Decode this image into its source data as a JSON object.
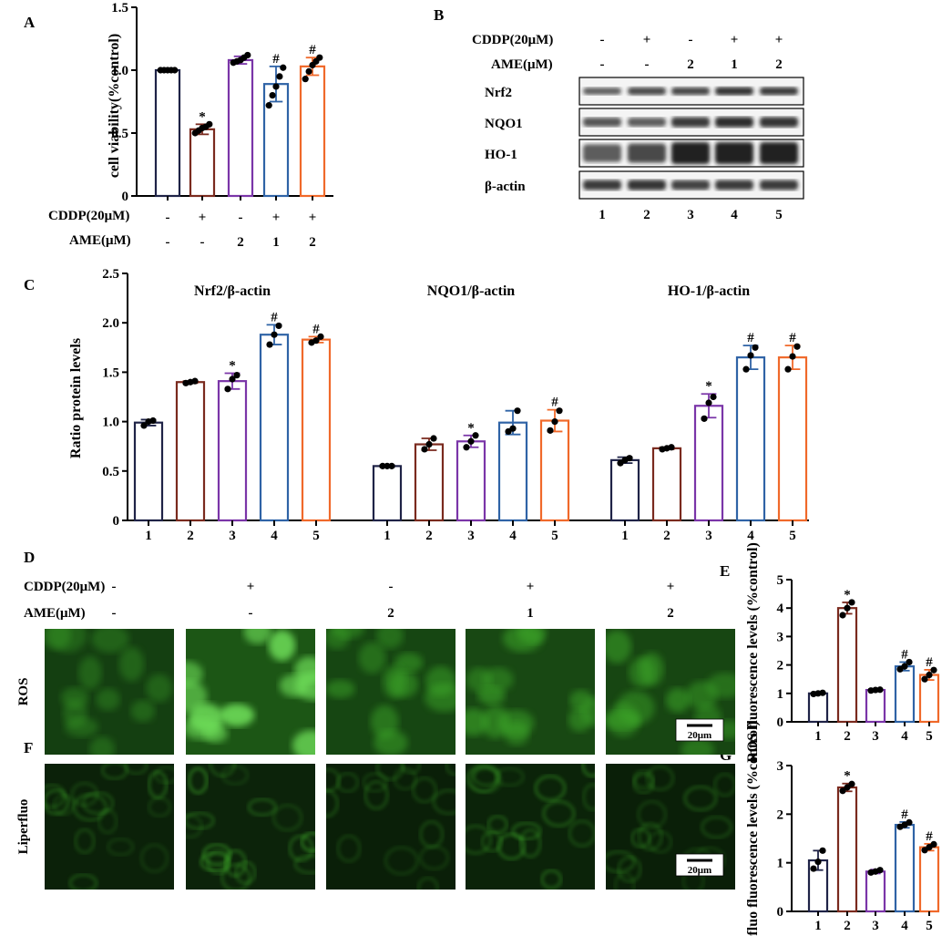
{
  "panels": {
    "A": "A",
    "B": "B",
    "C": "C",
    "D": "D",
    "E": "E",
    "F": "F",
    "G": "G"
  },
  "colors": {
    "g1": "#1f2347",
    "g2": "#7a2a1e",
    "g3": "#7a35a8",
    "g4": "#2f63a6",
    "g5": "#f0692a",
    "fluor": "#3fae2a"
  },
  "conditions": {
    "cddp_label": "CDDP(20μM)",
    "ame_label": "AME(μM)",
    "cddp": [
      "-",
      "+",
      "-",
      "+",
      "+"
    ],
    "ame": [
      "-",
      "-",
      "2",
      "1",
      "2"
    ]
  },
  "blot": {
    "rows": [
      "Nrf2",
      "NQO1",
      "HO-1",
      "β-actin"
    ],
    "lanes": [
      "1",
      "2",
      "3",
      "4",
      "5"
    ]
  },
  "images": {
    "row_labels": [
      "ROS",
      "Liperfluo"
    ],
    "scale_bar": "20μm"
  },
  "chart_data": [
    {
      "id": "A",
      "type": "bar",
      "ylabel": "cell viability(%control)",
      "ylim": [
        0,
        1.5
      ],
      "yticks": [
        "0",
        "0.5",
        "1.0",
        "1.5"
      ],
      "values": [
        1.0,
        0.53,
        1.08,
        0.89,
        1.03
      ],
      "errors": [
        0.0,
        0.04,
        0.03,
        0.14,
        0.07
      ],
      "points": [
        [
          1.0,
          1.0,
          1.0,
          1.0,
          1.0
        ],
        [
          0.5,
          0.52,
          0.54,
          0.55,
          0.57
        ],
        [
          1.06,
          1.07,
          1.08,
          1.1,
          1.12
        ],
        [
          0.72,
          0.8,
          0.87,
          0.95,
          1.02
        ],
        [
          0.93,
          0.99,
          1.04,
          1.07,
          1.1
        ]
      ],
      "marks": [
        "",
        "*",
        "",
        "#",
        "#"
      ]
    },
    {
      "id": "C",
      "type": "bar",
      "ylabel": "Ratio protein levels",
      "ylim": [
        0,
        2.5
      ],
      "yticks": [
        "0",
        "0.5",
        "1.0",
        "1.5",
        "2.0",
        "2.5"
      ],
      "categories": [
        "1",
        "2",
        "3",
        "4",
        "5"
      ],
      "groups": [
        {
          "title": "Nrf2/β-actin",
          "values": [
            0.99,
            1.4,
            1.41,
            1.88,
            1.83
          ],
          "errors": [
            0.03,
            0.01,
            0.08,
            0.1,
            0.03
          ],
          "points": [
            [
              0.96,
              1.0,
              1.01
            ],
            [
              1.39,
              1.4,
              1.41
            ],
            [
              1.33,
              1.43,
              1.47
            ],
            [
              1.78,
              1.88,
              1.97
            ],
            [
              1.8,
              1.82,
              1.86
            ]
          ],
          "marks": [
            "",
            "",
            "*",
            "#",
            "#"
          ]
        },
        {
          "title": "NQO1/β-actin",
          "values": [
            0.55,
            0.77,
            0.8,
            0.99,
            1.01
          ],
          "errors": [
            0.01,
            0.06,
            0.06,
            0.12,
            0.11
          ],
          "points": [
            [
              0.55,
              0.55,
              0.55
            ],
            [
              0.72,
              0.77,
              0.83
            ],
            [
              0.74,
              0.8,
              0.86
            ],
            [
              0.9,
              0.93,
              1.11
            ],
            [
              0.91,
              1.0,
              1.11
            ]
          ],
          "marks": [
            "",
            "",
            "*",
            "",
            "#"
          ]
        },
        {
          "title": "HO-1/β-actin",
          "values": [
            0.61,
            0.73,
            1.16,
            1.65,
            1.65
          ],
          "errors": [
            0.03,
            0.01,
            0.12,
            0.12,
            0.12
          ],
          "points": [
            [
              0.58,
              0.61,
              0.63
            ],
            [
              0.72,
              0.73,
              0.74
            ],
            [
              1.03,
              1.19,
              1.25
            ],
            [
              1.53,
              1.67,
              1.75
            ],
            [
              1.53,
              1.66,
              1.76
            ]
          ],
          "marks": [
            "",
            "",
            "*",
            "#",
            "#"
          ]
        }
      ]
    },
    {
      "id": "E",
      "type": "bar",
      "ylabel": "ROS fluorescence levels (%control)",
      "ylim": [
        0,
        5
      ],
      "yticks": [
        "0",
        "1",
        "2",
        "3",
        "4",
        "5"
      ],
      "categories": [
        "1",
        "2",
        "3",
        "4",
        "5"
      ],
      "values": [
        1.0,
        4.0,
        1.12,
        1.95,
        1.65
      ],
      "errors": [
        0.02,
        0.2,
        0.02,
        0.15,
        0.18
      ],
      "points": [
        [
          0.98,
          1.0,
          1.02
        ],
        [
          3.75,
          4.0,
          4.2
        ],
        [
          1.1,
          1.12,
          1.13
        ],
        [
          1.85,
          1.95,
          2.1
        ],
        [
          1.5,
          1.65,
          1.82
        ]
      ],
      "marks": [
        "",
        "*",
        "",
        "#",
        "#"
      ]
    },
    {
      "id": "G",
      "type": "bar",
      "ylabel": "Liperfluo fluorescence levels (%control)",
      "ylim": [
        0,
        3
      ],
      "yticks": [
        "0",
        "1",
        "2",
        "3"
      ],
      "categories": [
        "1",
        "2",
        "3",
        "4",
        "5"
      ],
      "values": [
        1.05,
        2.55,
        0.82,
        1.78,
        1.32
      ],
      "errors": [
        0.2,
        0.08,
        0.04,
        0.06,
        0.07
      ],
      "points": [
        [
          0.88,
          1.02,
          1.25
        ],
        [
          2.48,
          2.55,
          2.62
        ],
        [
          0.8,
          0.82,
          0.85
        ],
        [
          1.74,
          1.78,
          1.83
        ],
        [
          1.26,
          1.32,
          1.38
        ]
      ],
      "marks": [
        "",
        "*",
        "",
        "#",
        "#"
      ]
    }
  ]
}
